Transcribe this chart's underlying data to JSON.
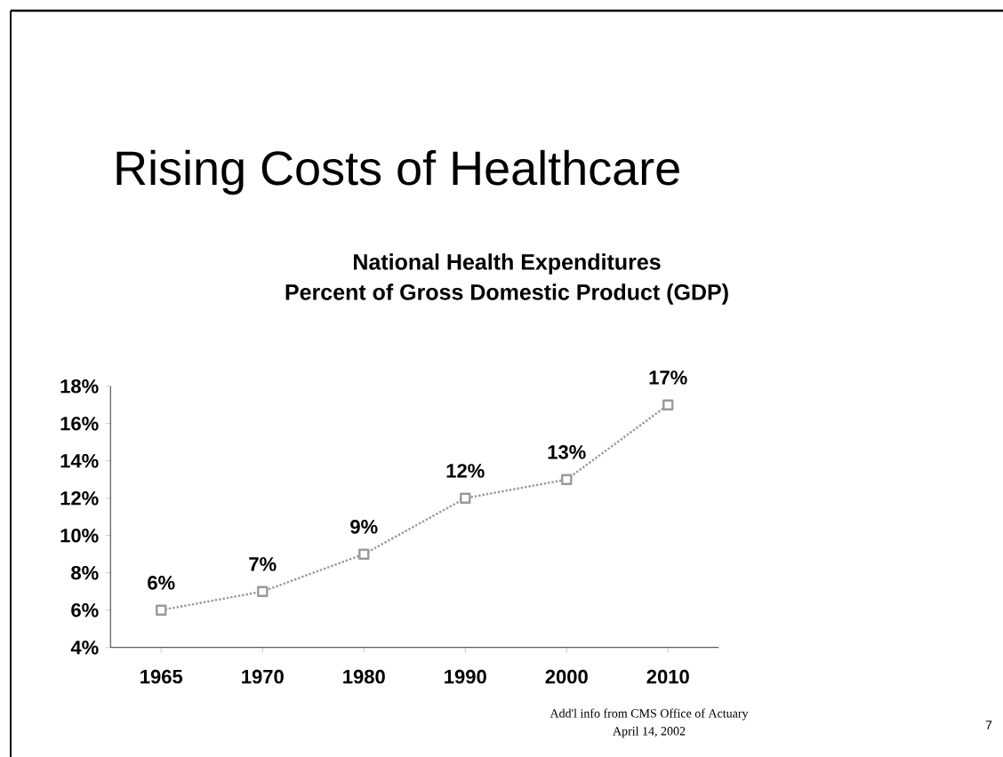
{
  "chart_data": {
    "type": "line",
    "title": "Rising Costs of Healthcare",
    "subtitle": "National Health Expenditures\nPercent of Gross Domestic Product (GDP)",
    "categories": [
      "1965",
      "1970",
      "1980",
      "1990",
      "2000",
      "2010"
    ],
    "series": [
      {
        "color": "#9a9a9a",
        "values": [
          6,
          7,
          9,
          12,
          13,
          17
        ]
      }
    ],
    "ylim": [
      4,
      18
    ],
    "yticks": [
      {
        "value": 4,
        "label": "4%"
      },
      {
        "value": 6,
        "label": "6%"
      },
      {
        "value": 8,
        "label": "8%"
      },
      {
        "value": 10,
        "label": "10%"
      },
      {
        "value": 12,
        "label": "12%"
      },
      {
        "value": 14,
        "label": "14%"
      },
      {
        "value": 16,
        "label": "16%"
      },
      {
        "value": 18,
        "label": "18%"
      }
    ],
    "value_labels": [
      "6%",
      "7%",
      "9%",
      "12%",
      "13%",
      "17%"
    ],
    "marker": "square",
    "line_style": "dotted",
    "annotations": [
      "Add'l info from CMS Office of Actuary",
      "April 14, 2002",
      "7"
    ]
  }
}
